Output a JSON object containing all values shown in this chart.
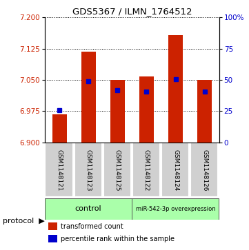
{
  "title": "GDS5367 / ILMN_1764512",
  "samples": [
    "GSM1148121",
    "GSM1148123",
    "GSM1148125",
    "GSM1148122",
    "GSM1148124",
    "GSM1148126"
  ],
  "transformed_counts": [
    6.968,
    7.118,
    7.05,
    7.058,
    7.158,
    7.05
  ],
  "percentile_ranks": [
    6.978,
    7.046,
    7.025,
    7.022,
    7.052,
    7.022
  ],
  "bar_bottom": 6.9,
  "ylim": [
    6.9,
    7.2
  ],
  "right_ylim": [
    0,
    100
  ],
  "yticks_left": [
    6.9,
    6.975,
    7.05,
    7.125,
    7.2
  ],
  "yticks_right": [
    0,
    25,
    50,
    75,
    100
  ],
  "bar_color": "#cc2200",
  "percentile_color": "#0000cc",
  "plot_bg_color": "#ffffff",
  "label_color_left": "#cc2200",
  "label_color_right": "#0000cc",
  "bar_width": 0.5,
  "legend_bar_label": "transformed count",
  "legend_pct_label": "percentile rank within the sample"
}
